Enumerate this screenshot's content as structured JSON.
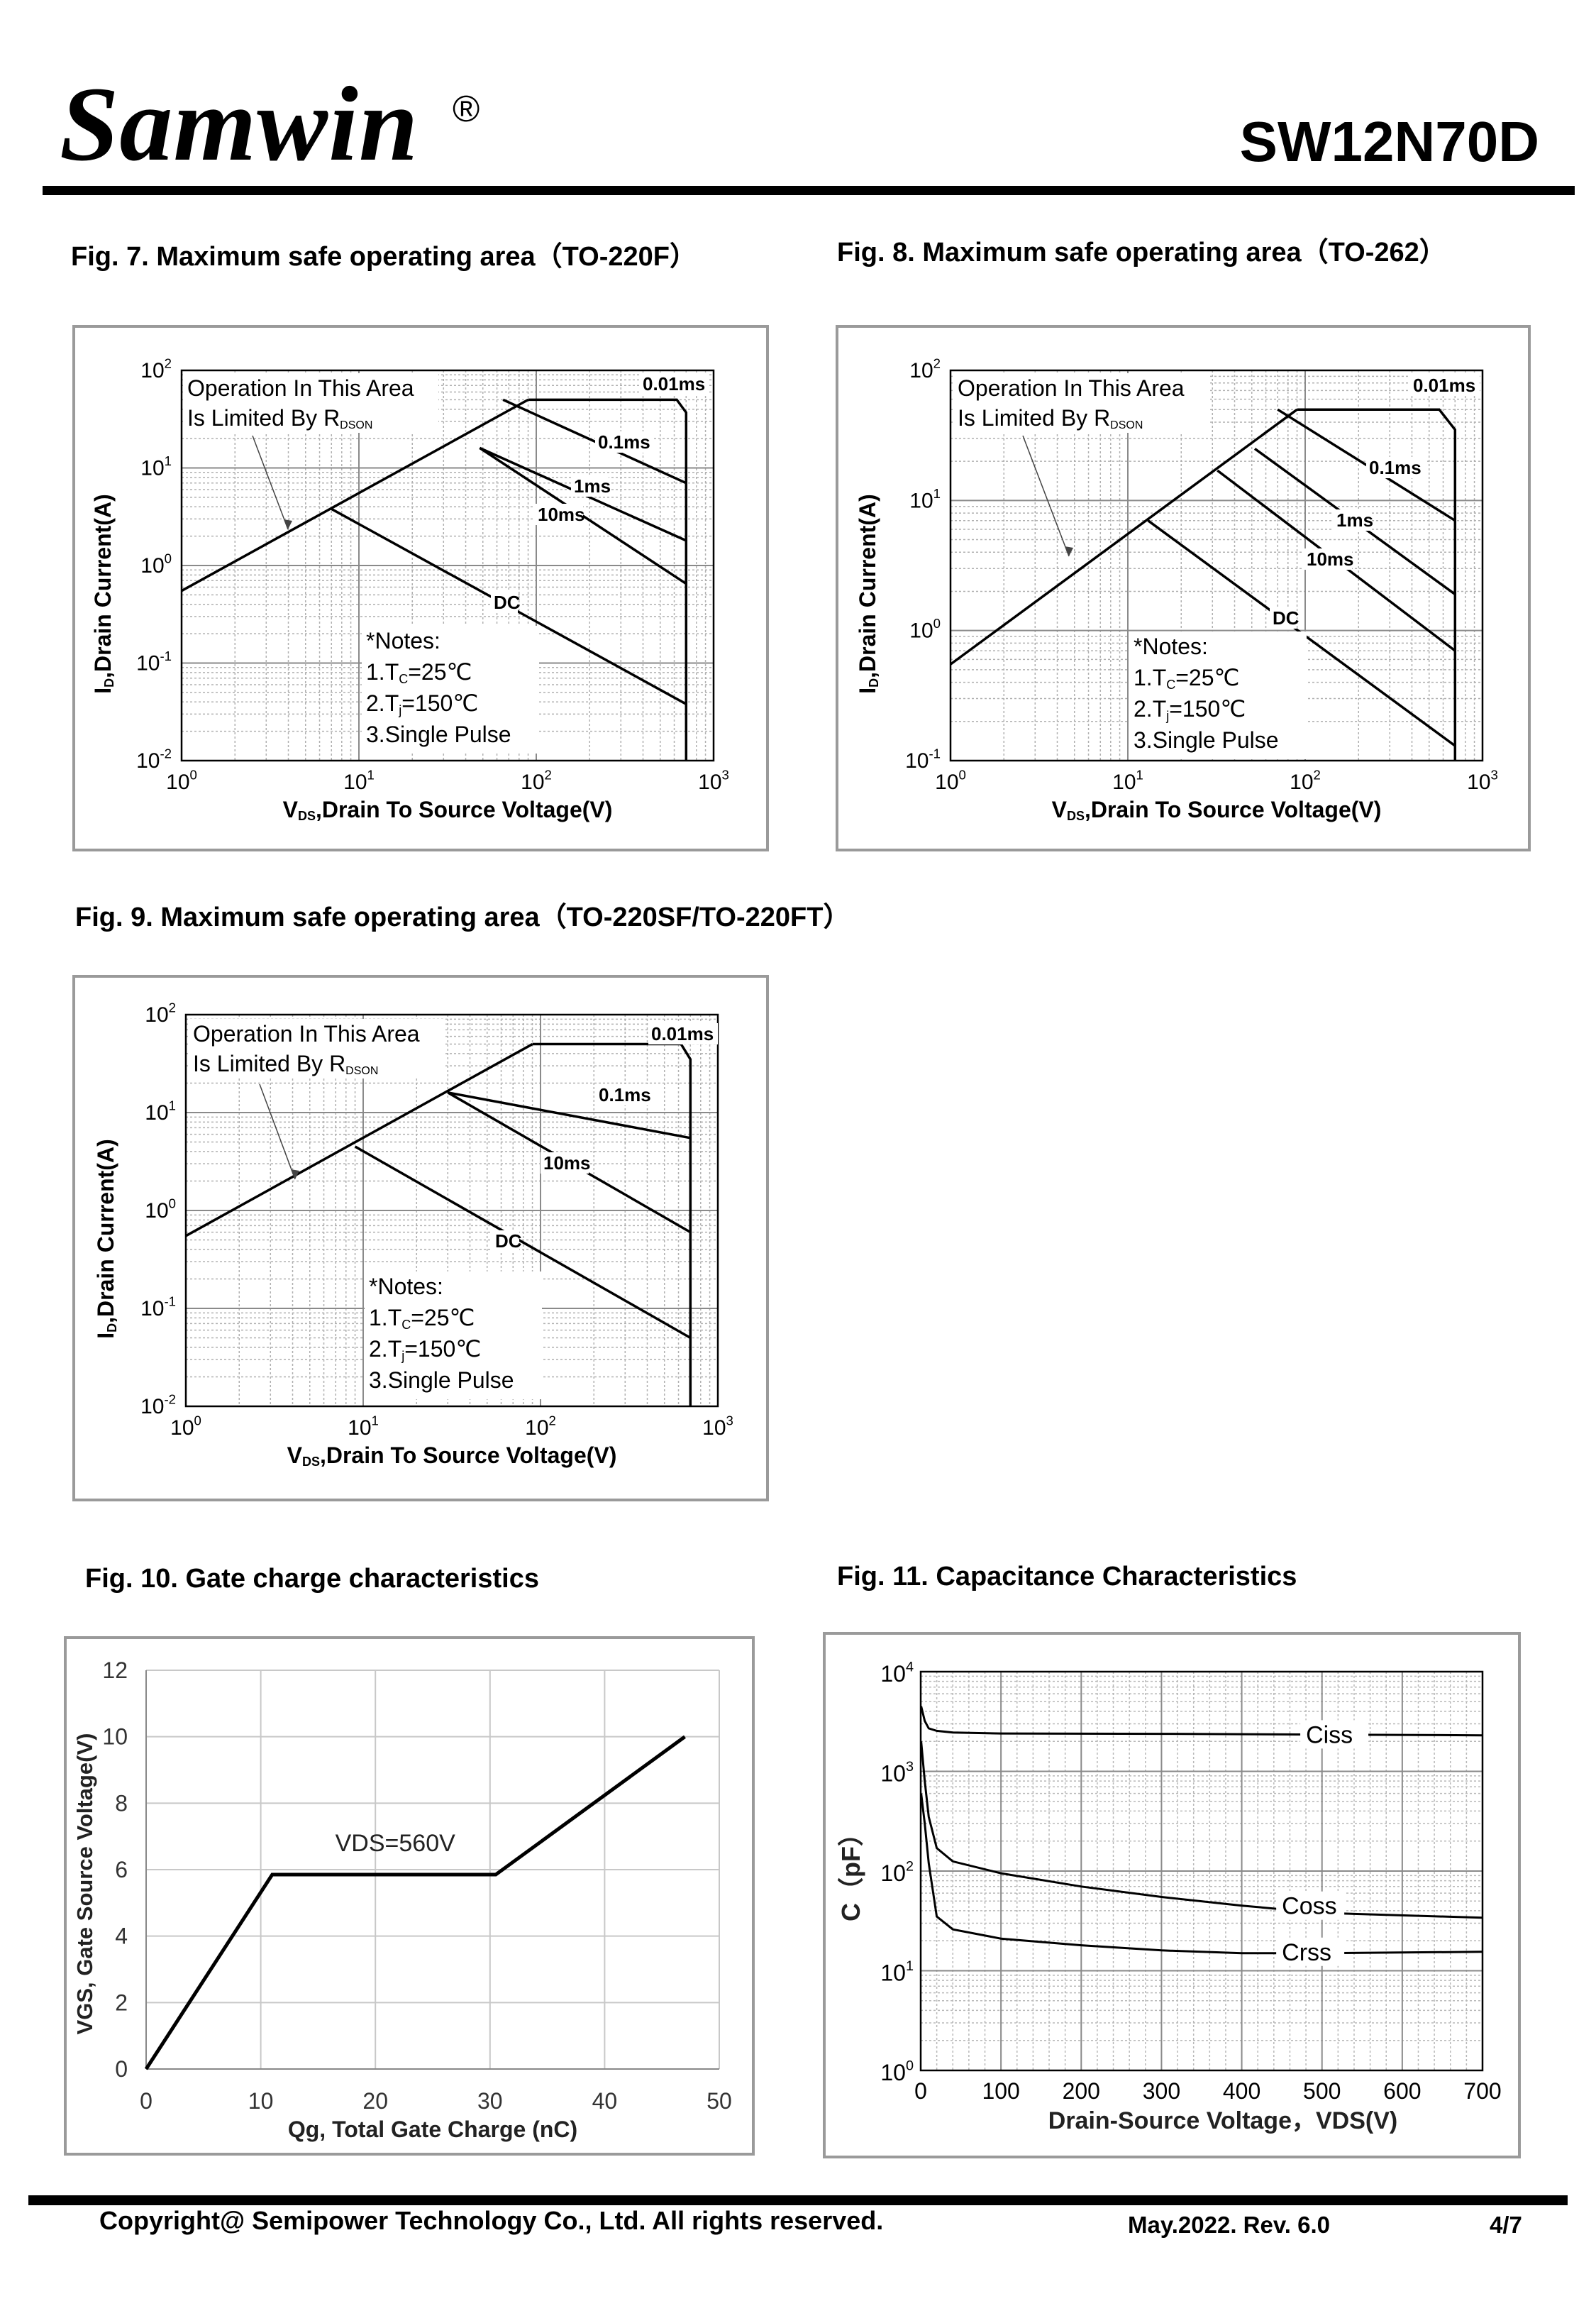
{
  "header": {
    "brand": "Samwin",
    "registered": "®",
    "part_number": "SW12N70D"
  },
  "footer": {
    "copyright": "Copyright@ Semipower Technology Co., Ltd. All rights reserved.",
    "revision": "May.2022. Rev. 6.0",
    "page": "4/7"
  },
  "soa_common": {
    "xlabel": "V DS,Drain To Source Voltage(V)",
    "xlabel_main": "Drain To Source Voltage(V)",
    "xlabel_sym": "V",
    "xlabel_sub": "DS",
    "ylabel_sym": "I",
    "ylabel_sub": "D",
    "ylabel_main": ",Drain Current(A)",
    "limit_note_line1": "Operation In This Area",
    "limit_note_line2": "Is Limited By R",
    "limit_note_sub": "DSON",
    "notes": [
      "*Notes:",
      "1.T",
      "C",
      "=25℃",
      "2.T",
      "j",
      "=150℃",
      "3.Single Pulse"
    ]
  },
  "figures": {
    "fig7": {
      "title": "Fig. 7. Maximum safe operating area（TO-220F）"
    },
    "fig8": {
      "title": "Fig. 8. Maximum safe operating area（TO-262）"
    },
    "fig9": {
      "title": "Fig. 9. Maximum safe operating area（TO-220SF/TO-220FT）"
    },
    "fig10": {
      "title": "Fig. 10. Gate charge characteristics"
    },
    "fig11": {
      "title": "Fig. 11. Capacitance Characteristics"
    }
  },
  "chart_data": [
    {
      "id": "fig7",
      "type": "line",
      "xscale": "log",
      "yscale": "log",
      "xlim": [
        1,
        1000
      ],
      "ylim": [
        0.01,
        100
      ],
      "xticks": [
        "10^0",
        "10^1",
        "10^2",
        "10^3"
      ],
      "yticks": [
        "10^-2",
        "10^-1",
        "10^0",
        "10^1",
        "10^2"
      ],
      "rdson_line": [
        [
          1,
          0.55
        ],
        [
          90,
          50
        ]
      ],
      "series": [
        {
          "name": "0.01ms",
          "points": [
            [
              90,
              50
            ],
            [
              620,
              50
            ],
            [
              700,
              37
            ],
            [
              700,
              0.01
            ]
          ]
        },
        {
          "name": "0.1ms",
          "points": [
            [
              65,
              50
            ],
            [
              700,
              7
            ]
          ]
        },
        {
          "name": "1ms",
          "points": [
            [
              48,
              16
            ],
            [
              700,
              1.8
            ]
          ]
        },
        {
          "name": "10ms",
          "points": [
            [
              48,
              16
            ],
            [
              700,
              0.65
            ]
          ]
        },
        {
          "name": "DC",
          "points": [
            [
              7,
              3.8
            ],
            [
              700,
              0.038
            ]
          ]
        }
      ]
    },
    {
      "id": "fig8",
      "type": "line",
      "xscale": "log",
      "yscale": "log",
      "xlim": [
        1,
        1000
      ],
      "ylim": [
        0.1,
        100
      ],
      "xticks": [
        "10^0",
        "10^1",
        "10^2",
        "10^3"
      ],
      "yticks": [
        "10^-1",
        "10^0",
        "10^1",
        "10^2"
      ],
      "rdson_line": [
        [
          1,
          0.55
        ],
        [
          90,
          50
        ]
      ],
      "series": [
        {
          "name": "0.01ms",
          "points": [
            [
              90,
              50
            ],
            [
              570,
              50
            ],
            [
              700,
              35
            ],
            [
              700,
              0.1
            ]
          ]
        },
        {
          "name": "0.1ms",
          "points": [
            [
              70,
              50
            ],
            [
              700,
              7
            ]
          ]
        },
        {
          "name": "1ms",
          "points": [
            [
              52,
              25
            ],
            [
              700,
              1.9
            ]
          ]
        },
        {
          "name": "10ms",
          "points": [
            [
              32,
              17
            ],
            [
              700,
              0.7
            ]
          ]
        },
        {
          "name": "DC",
          "points": [
            [
              13,
              7
            ],
            [
              700,
              0.13
            ]
          ]
        }
      ]
    },
    {
      "id": "fig9",
      "type": "line",
      "xscale": "log",
      "yscale": "log",
      "xlim": [
        1,
        1000
      ],
      "ylim": [
        0.01,
        100
      ],
      "xticks": [
        "10^0",
        "10^1",
        "10^2",
        "10^3"
      ],
      "yticks": [
        "10^-2",
        "10^-1",
        "10^0",
        "10^1",
        "10^2"
      ],
      "rdson_line": [
        [
          1,
          0.55
        ],
        [
          90,
          50
        ]
      ],
      "series": [
        {
          "name": "0.01ms",
          "points": [
            [
              90,
              50
            ],
            [
              620,
              50
            ],
            [
              700,
              35
            ],
            [
              700,
              0.01
            ]
          ]
        },
        {
          "name": "0.1ms",
          "points": [
            [
              30,
              16
            ],
            [
              700,
              5.5
            ]
          ]
        },
        {
          "name": "10ms",
          "points": [
            [
              30,
              16
            ],
            [
              700,
              0.6
            ]
          ]
        },
        {
          "name": "DC",
          "points": [
            [
              9,
              4.5
            ],
            [
              700,
              0.05
            ]
          ]
        }
      ]
    },
    {
      "id": "fig10",
      "type": "line",
      "xlabel": "Qg, Total Gate Charge (nC)",
      "ylabel": "VGS,  Gate Source Voltage(V)",
      "xlim": [
        0,
        50
      ],
      "ylim": [
        0,
        12
      ],
      "xticks": [
        0,
        10,
        20,
        30,
        40,
        50
      ],
      "yticks": [
        0,
        2,
        4,
        6,
        8,
        10,
        12
      ],
      "annotation": "VDS=560V",
      "series": [
        {
          "name": "",
          "points": [
            [
              0,
              0
            ],
            [
              11,
              5.85
            ],
            [
              30.5,
              5.85
            ],
            [
              47,
              10
            ]
          ]
        }
      ]
    },
    {
      "id": "fig11",
      "type": "line",
      "yscale": "log",
      "xlabel": "Drain-Source Voltage，VDS(V)",
      "ylabel": "C（pF）",
      "xlim": [
        0,
        700
      ],
      "ylim": [
        1,
        10000
      ],
      "xticks": [
        0,
        100,
        200,
        300,
        400,
        500,
        600,
        700
      ],
      "yticks": [
        "10^0",
        "10^1",
        "10^2",
        "10^3",
        "10^4"
      ],
      "series": [
        {
          "name": "Ciss",
          "points": [
            [
              0.5,
              4500
            ],
            [
              5,
              3200
            ],
            [
              10,
              2700
            ],
            [
              20,
              2550
            ],
            [
              40,
              2450
            ],
            [
              100,
              2400
            ],
            [
              300,
              2380
            ],
            [
              700,
              2300
            ]
          ]
        },
        {
          "name": "Coss",
          "points": [
            [
              0.5,
              2000
            ],
            [
              5,
              800
            ],
            [
              10,
              350
            ],
            [
              20,
              170
            ],
            [
              40,
              125
            ],
            [
              100,
              95
            ],
            [
              200,
              70
            ],
            [
              300,
              55
            ],
            [
              400,
              45
            ],
            [
              500,
              38
            ],
            [
              700,
              34
            ]
          ]
        },
        {
          "name": "Crss",
          "points": [
            [
              0.5,
              600
            ],
            [
              5,
              300
            ],
            [
              10,
              120
            ],
            [
              20,
              35
            ],
            [
              40,
              26
            ],
            [
              100,
              21
            ],
            [
              200,
              18
            ],
            [
              300,
              16
            ],
            [
              400,
              15
            ],
            [
              500,
              15
            ],
            [
              700,
              15.5
            ]
          ]
        }
      ]
    }
  ]
}
